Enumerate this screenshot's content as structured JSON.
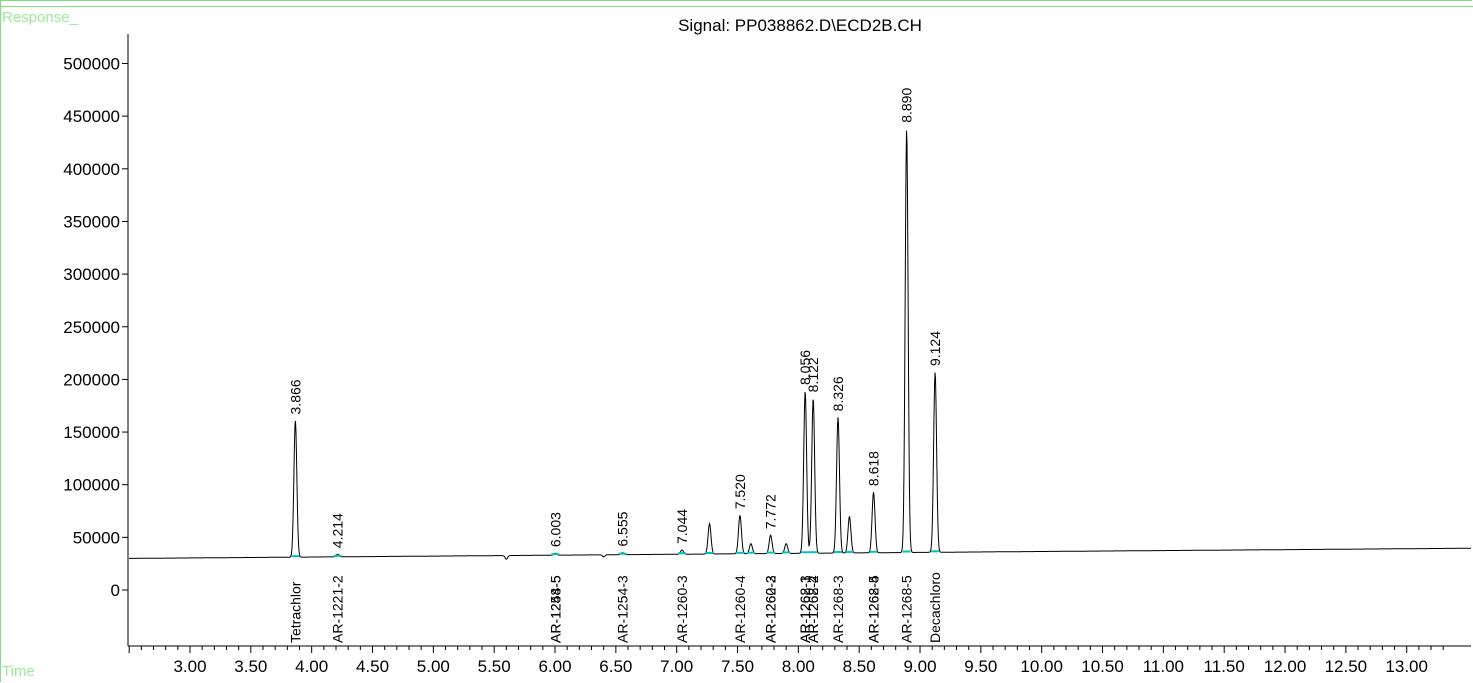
{
  "header": {
    "y_axis_label": "Response_",
    "x_axis_label": "Time",
    "title": "Signal: PP038862.D\\ECD2B.CH"
  },
  "colors": {
    "frame": "#7fe07f",
    "trace": "#000000",
    "baseline": "#00c0c0"
  },
  "chart_data": {
    "type": "line",
    "title": "Signal: PP038862.D\\ECD2B.CH",
    "xlabel": "Time",
    "ylabel": "Response_",
    "xlim": [
      2.5,
      13.35
    ],
    "ylim": [
      -50000,
      530000
    ],
    "x_ticks": [
      "3.00",
      "3.50",
      "4.00",
      "4.50",
      "5.00",
      "5.50",
      "6.00",
      "6.50",
      "7.00",
      "7.50",
      "8.00",
      "8.50",
      "9.00",
      "9.50",
      "10.00",
      "10.50",
      "11.00",
      "11.50",
      "12.00",
      "12.50",
      "13.00"
    ],
    "y_ticks": [
      "0",
      "50000",
      "100000",
      "150000",
      "200000",
      "250000",
      "300000",
      "350000",
      "400000",
      "450000",
      "500000"
    ],
    "baseline": {
      "start": 30000,
      "end": 39500
    },
    "peaks": [
      {
        "rt": 3.866,
        "height": 161000,
        "label": "3.866"
      },
      {
        "rt": 4.214,
        "height": 34000,
        "label": "4.214"
      },
      {
        "rt": 6.003,
        "height": 35000,
        "label": "6.003"
      },
      {
        "rt": 6.555,
        "height": 35500,
        "label": "6.555"
      },
      {
        "rt": 7.044,
        "height": 38000,
        "label": "7.044"
      },
      {
        "rt": 7.27,
        "height": 63000,
        "label": ""
      },
      {
        "rt": 7.52,
        "height": 71000,
        "label": "7.520"
      },
      {
        "rt": 7.61,
        "height": 44000,
        "label": ""
      },
      {
        "rt": 7.772,
        "height": 52000,
        "label": "7.772"
      },
      {
        "rt": 7.9,
        "height": 44000,
        "label": ""
      },
      {
        "rt": 8.056,
        "height": 189000,
        "label": "8.056"
      },
      {
        "rt": 8.122,
        "height": 182000,
        "label": "8.122"
      },
      {
        "rt": 8.326,
        "height": 164000,
        "label": "8.326"
      },
      {
        "rt": 8.42,
        "height": 70000,
        "label": ""
      },
      {
        "rt": 8.618,
        "height": 93000,
        "label": "8.618"
      },
      {
        "rt": 8.89,
        "height": 438000,
        "label": "8.890"
      },
      {
        "rt": 9.124,
        "height": 207000,
        "label": "9.124"
      }
    ],
    "compounds": [
      {
        "rt": 3.866,
        "name": "Tetrachlor"
      },
      {
        "rt": 4.214,
        "name": "AR-1221-2"
      },
      {
        "rt": 6.003,
        "name": "AR-1248-5"
      },
      {
        "rt": 6.003,
        "name": "AR-1254-5"
      },
      {
        "rt": 6.555,
        "name": "AR-1254-3"
      },
      {
        "rt": 7.044,
        "name": "AR-1260-3"
      },
      {
        "rt": 7.52,
        "name": "AR-1260-4"
      },
      {
        "rt": 7.772,
        "name": "AR-1260-2"
      },
      {
        "rt": 7.772,
        "name": "AR-1262-3"
      },
      {
        "rt": 8.056,
        "name": "AR-1268-1"
      },
      {
        "rt": 8.056,
        "name": "AR-1262-3"
      },
      {
        "rt": 8.122,
        "name": "AR-1268-2"
      },
      {
        "rt": 8.122,
        "name": "AR-1262-4"
      },
      {
        "rt": 8.326,
        "name": "AR-1268-3"
      },
      {
        "rt": 8.618,
        "name": "AR-1262-5"
      },
      {
        "rt": 8.618,
        "name": "AR-1268-4"
      },
      {
        "rt": 8.89,
        "name": "AR-1268-5"
      },
      {
        "rt": 9.124,
        "name": "Decachloro"
      }
    ]
  }
}
